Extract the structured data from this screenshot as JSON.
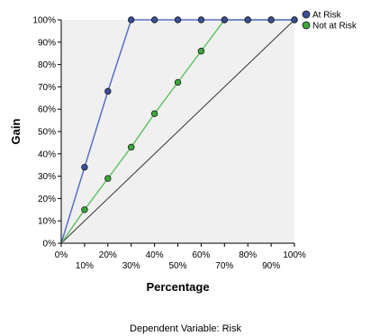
{
  "chart_data": {
    "type": "line",
    "xlabel": "Percentage",
    "ylabel": "Gain",
    "xlim": [
      0,
      100
    ],
    "ylim": [
      0,
      100
    ],
    "x_ticks": [
      "0%",
      "10%",
      "20%",
      "30%",
      "40%",
      "50%",
      "60%",
      "70%",
      "80%",
      "90%",
      "100%"
    ],
    "y_ticks": [
      "0%",
      "10%",
      "20%",
      "30%",
      "40%",
      "50%",
      "60%",
      "70%",
      "80%",
      "90%",
      "100%"
    ],
    "grid": false,
    "legend_position": "top-right",
    "background_color": "#f0f0f0",
    "series": [
      {
        "name": "At Risk",
        "color": "#5a6fc4",
        "marker_color": "#3a4f9a",
        "x": [
          0,
          10,
          20,
          30,
          40,
          50,
          60,
          70,
          80,
          90,
          100
        ],
        "y": [
          0,
          34,
          68,
          100,
          100,
          100,
          100,
          100,
          100,
          100,
          100
        ]
      },
      {
        "name": "Not at Risk",
        "color": "#66c466",
        "marker_color": "#3aa83a",
        "x": [
          0,
          10,
          20,
          30,
          40,
          50,
          60,
          70,
          80,
          90,
          100
        ],
        "y": [
          0,
          15,
          29,
          43,
          58,
          72,
          86,
          100,
          100,
          100,
          100
        ]
      }
    ],
    "baseline": {
      "color": "#333333",
      "x": [
        0,
        100
      ],
      "y": [
        0,
        100
      ]
    },
    "footnote": "Dependent Variable: Risk"
  }
}
